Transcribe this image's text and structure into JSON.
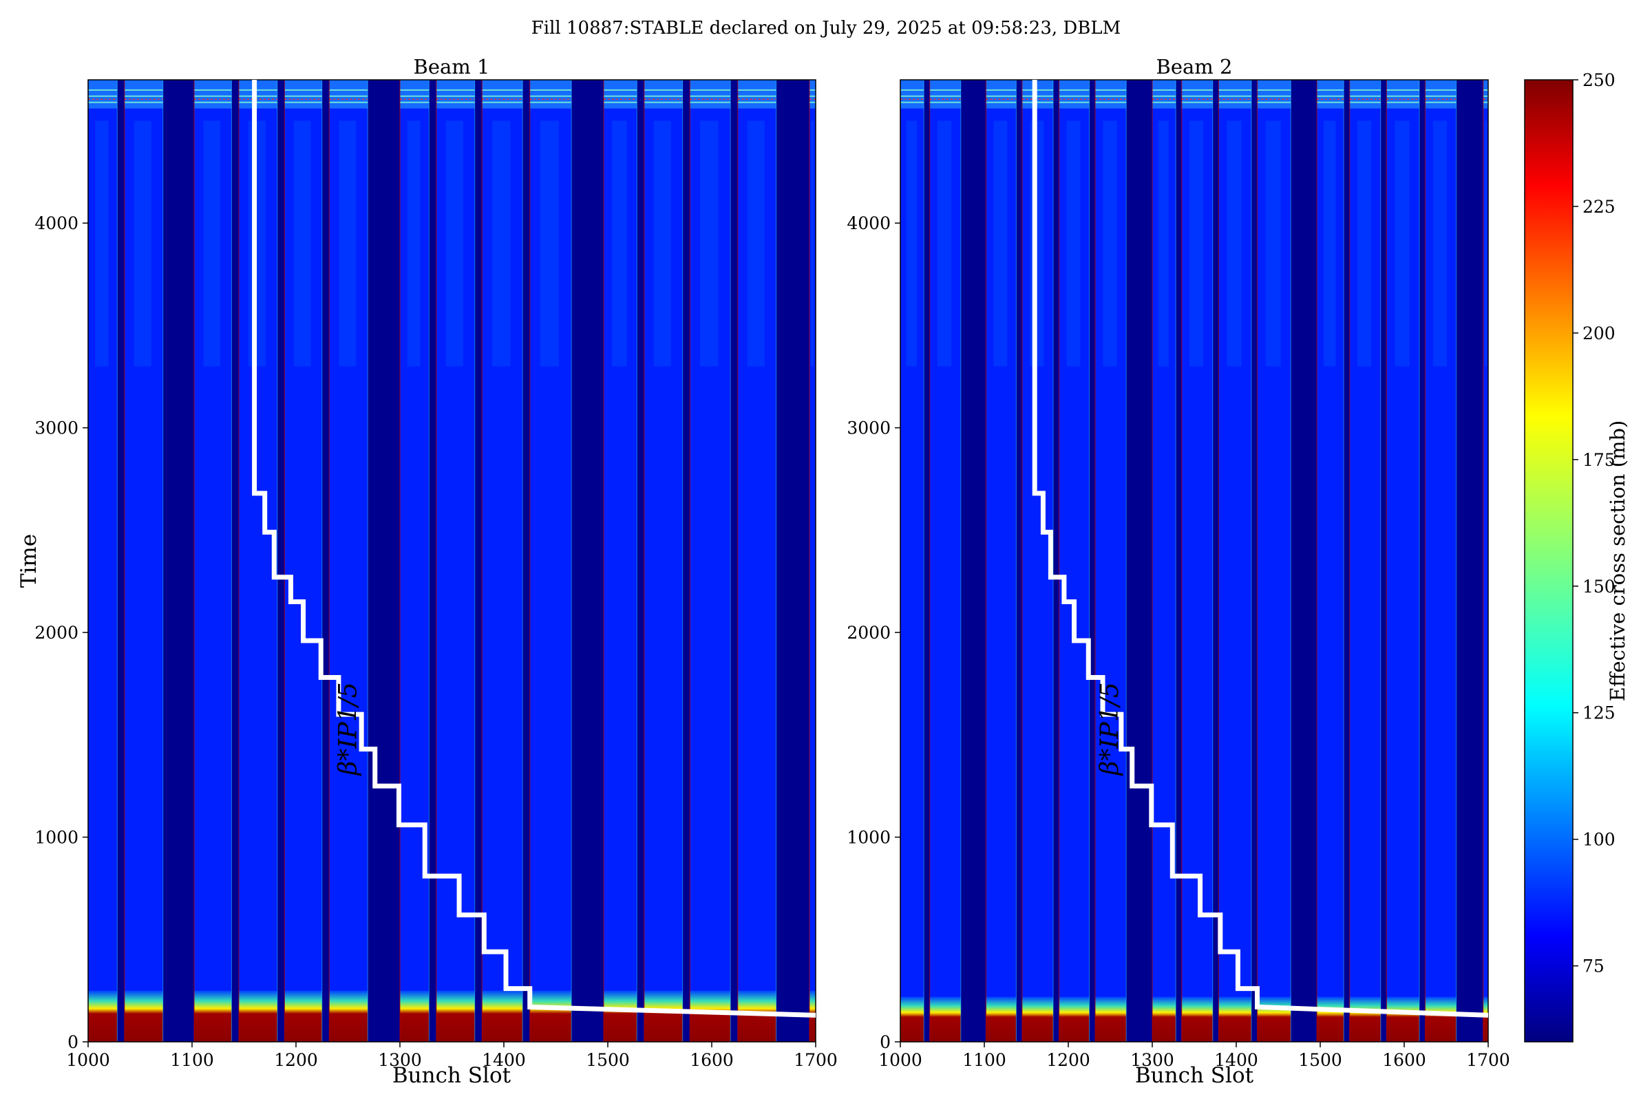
{
  "suptitle": "Fill 10887:STABLE declared on July 29, 2025 at 09:58:23, DBLM",
  "colors": {
    "background": "#00008f",
    "bunch_fill": "#0020ff",
    "bunch_highlight": "#0090ff",
    "edge": "#b00000",
    "hot": "#8b0000",
    "overlay_line": "#ffffff"
  },
  "chart_data": [
    {
      "type": "heatmap",
      "title": "Beam 1",
      "xlabel": "Bunch Slot",
      "ylabel": "Time",
      "xlim": [
        1000,
        1700
      ],
      "ylim": [
        0,
        4700
      ],
      "xticks": [
        "1000",
        "1100",
        "1200",
        "1300",
        "1400",
        "1500",
        "1600",
        "1700"
      ],
      "yticks": [
        "0",
        "1000",
        "2000",
        "3000",
        "4000"
      ],
      "colormap": "jet",
      "filled_bunch_trains": [
        [
          1000,
          1028
        ],
        [
          1035,
          1072
        ],
        [
          1102,
          1138
        ],
        [
          1145,
          1182
        ],
        [
          1189,
          1225
        ],
        [
          1232,
          1269
        ],
        [
          1300,
          1328
        ],
        [
          1335,
          1372
        ],
        [
          1379,
          1418
        ],
        [
          1425,
          1465
        ],
        [
          1496,
          1528
        ],
        [
          1535,
          1572
        ],
        [
          1579,
          1618
        ],
        [
          1625,
          1662
        ],
        [
          1694,
          1700
        ]
      ],
      "bottom_hot_band_time": [
        0,
        150
      ],
      "top_active_band_time": [
        4560,
        4700
      ],
      "annotation": "β*IP1/5",
      "beta_star_leveling_line": {
        "x": [
          1160,
          1160,
          1170,
          1170,
          1179,
          1179,
          1195,
          1195,
          1207,
          1207,
          1224,
          1224,
          1241,
          1241,
          1263,
          1263,
          1276,
          1276,
          1299,
          1299,
          1324,
          1324,
          1357,
          1357,
          1381,
          1381,
          1402,
          1402,
          1425,
          1425,
          1700
        ],
        "y": [
          4700,
          2680,
          2680,
          2490,
          2490,
          2270,
          2270,
          2150,
          2150,
          1960,
          1960,
          1780,
          1780,
          1600,
          1600,
          1430,
          1430,
          1250,
          1250,
          1060,
          1060,
          810,
          810,
          620,
          620,
          440,
          440,
          260,
          260,
          170,
          130
        ]
      }
    },
    {
      "type": "heatmap",
      "title": "Beam 2",
      "xlabel": "Bunch Slot",
      "ylabel": "",
      "xlim": [
        1000,
        1700
      ],
      "ylim": [
        0,
        4700
      ],
      "xticks": [
        "1000",
        "1100",
        "1200",
        "1300",
        "1400",
        "1500",
        "1600",
        "1700"
      ],
      "yticks": [
        "0",
        "1000",
        "2000",
        "3000",
        "4000"
      ],
      "colormap": "jet",
      "filled_bunch_trains": [
        [
          1000,
          1028
        ],
        [
          1035,
          1072
        ],
        [
          1102,
          1138
        ],
        [
          1145,
          1182
        ],
        [
          1189,
          1225
        ],
        [
          1232,
          1269
        ],
        [
          1300,
          1328
        ],
        [
          1335,
          1372
        ],
        [
          1379,
          1418
        ],
        [
          1425,
          1465
        ],
        [
          1496,
          1528
        ],
        [
          1535,
          1572
        ],
        [
          1579,
          1618
        ],
        [
          1625,
          1662
        ],
        [
          1694,
          1700
        ]
      ],
      "bottom_hot_band_time": [
        0,
        120
      ],
      "top_active_band_time": [
        4560,
        4700
      ],
      "annotation": "β*IP1/5",
      "beta_star_leveling_line": {
        "x": [
          1160,
          1160,
          1170,
          1170,
          1179,
          1179,
          1195,
          1195,
          1207,
          1207,
          1224,
          1224,
          1241,
          1241,
          1263,
          1263,
          1276,
          1276,
          1299,
          1299,
          1324,
          1324,
          1357,
          1357,
          1381,
          1381,
          1402,
          1402,
          1425,
          1425,
          1700
        ],
        "y": [
          4700,
          2680,
          2680,
          2490,
          2490,
          2270,
          2270,
          2150,
          2150,
          1960,
          1960,
          1780,
          1780,
          1600,
          1600,
          1430,
          1430,
          1250,
          1250,
          1060,
          1060,
          810,
          810,
          620,
          620,
          440,
          440,
          260,
          260,
          170,
          130
        ]
      }
    }
  ],
  "colorbar": {
    "label": "Effective cross section (mb)",
    "range": [
      60,
      250
    ],
    "ticks": [
      "75",
      "100",
      "125",
      "150",
      "175",
      "200",
      "225",
      "250"
    ]
  }
}
